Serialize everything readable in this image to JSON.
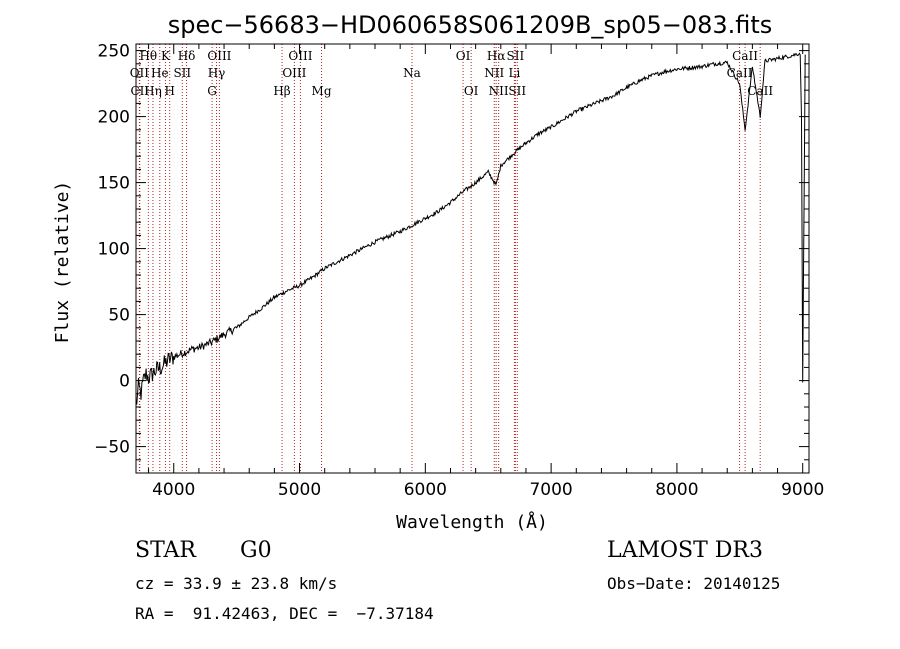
{
  "chart_data": {
    "type": "line",
    "title": "spec−56683−HD060658S061209B_sp05−083.fits",
    "xlabel": "Wavelength (Å)",
    "ylabel": "Flux (relative)",
    "xlim": [
      3700,
      9050
    ],
    "ylim": [
      -70,
      255
    ],
    "xticks": [
      4000,
      5000,
      6000,
      7000,
      8000,
      9000
    ],
    "yticks": [
      -50,
      0,
      50,
      100,
      150,
      200,
      250
    ],
    "series": [
      {
        "name": "spectrum",
        "x": [
          3700,
          3720,
          3740,
          3760,
          3780,
          3800,
          3830,
          3860,
          3900,
          3950,
          4000,
          4050,
          4100,
          4150,
          4200,
          4250,
          4300,
          4350,
          4400,
          4500,
          4600,
          4700,
          4800,
          4900,
          5000,
          5100,
          5200,
          5300,
          5400,
          5500,
          5600,
          5700,
          5800,
          5900,
          6000,
          6100,
          6200,
          6300,
          6400,
          6500,
          6563,
          6600,
          6700,
          6800,
          6900,
          7000,
          7100,
          7200,
          7300,
          7400,
          7500,
          7600,
          7700,
          7800,
          7900,
          8000,
          8100,
          8200,
          8300,
          8400,
          8498,
          8542,
          8600,
          8662,
          8700,
          8800,
          8900,
          8980,
          8990,
          9000,
          9020
        ],
        "y": [
          -20,
          -5,
          -10,
          0,
          5,
          2,
          5,
          8,
          10,
          15,
          18,
          20,
          22,
          24,
          25,
          27,
          29,
          32,
          35,
          40,
          48,
          55,
          63,
          68,
          72,
          78,
          85,
          90,
          95,
          100,
          105,
          109,
          113,
          118,
          123,
          128,
          135,
          143,
          150,
          158,
          148,
          163,
          172,
          180,
          187,
          192,
          198,
          204,
          208,
          212,
          216,
          222,
          227,
          231,
          234,
          236,
          237,
          238,
          240,
          241,
          225,
          190,
          238,
          200,
          242,
          244,
          246,
          248,
          200,
          0,
          247
        ]
      }
    ],
    "line_markers": [
      {
        "label": "Hθ",
        "wl": 3798,
        "row": 1
      },
      {
        "label": "OII",
        "wl": 3727,
        "row": 2
      },
      {
        "label": "CII",
        "wl": 3730,
        "row": 3
      },
      {
        "label": "He",
        "wl": 3889,
        "row": 2
      },
      {
        "label": "Hη",
        "wl": 3835,
        "row": 3
      },
      {
        "label": "K",
        "wl": 3934,
        "row": 1
      },
      {
        "label": "H",
        "wl": 3968,
        "row": 3
      },
      {
        "label": "SII",
        "wl": 4068,
        "row": 2
      },
      {
        "label": "Hδ",
        "wl": 4102,
        "row": 1
      },
      {
        "label": "OIII",
        "wl": 4363,
        "row": 1
      },
      {
        "label": "Hγ",
        "wl": 4340,
        "row": 2
      },
      {
        "label": "G",
        "wl": 4305,
        "row": 3
      },
      {
        "label": "Hβ",
        "wl": 4861,
        "row": 3
      },
      {
        "label": "OIII",
        "wl": 4959,
        "row": 2
      },
      {
        "label": "OIII",
        "wl": 5007,
        "row": 1
      },
      {
        "label": "Mg",
        "wl": 5175,
        "row": 3
      },
      {
        "label": "Na",
        "wl": 5894,
        "row": 2
      },
      {
        "label": "OI",
        "wl": 6300,
        "row": 1
      },
      {
        "label": "OI",
        "wl": 6364,
        "row": 3
      },
      {
        "label": "NII",
        "wl": 6548,
        "row": 2
      },
      {
        "label": "Hα",
        "wl": 6563,
        "row": 1
      },
      {
        "label": "NII",
        "wl": 6583,
        "row": 3
      },
      {
        "label": "Li",
        "wl": 6708,
        "row": 2
      },
      {
        "label": "SII",
        "wl": 6716,
        "row": 1
      },
      {
        "label": "SII",
        "wl": 6731,
        "row": 3
      },
      {
        "label": "CaII",
        "wl": 8498,
        "row": 2
      },
      {
        "label": "CaII",
        "wl": 8542,
        "row": 1
      },
      {
        "label": "CaII",
        "wl": 8662,
        "row": 3
      }
    ]
  },
  "info": {
    "object_type": "STAR",
    "subclass": "G0",
    "survey": "LAMOST DR3",
    "redshift_line": "cz = 33.9 ± 23.8 km/s",
    "obs_date_line": "Obs−Date: 20140125",
    "coords_line": "RA =  91.42463, DEC =  −7.37184"
  },
  "colors": {
    "spectrum": "#000000",
    "marker": "#b22222",
    "axis": "#000000"
  }
}
